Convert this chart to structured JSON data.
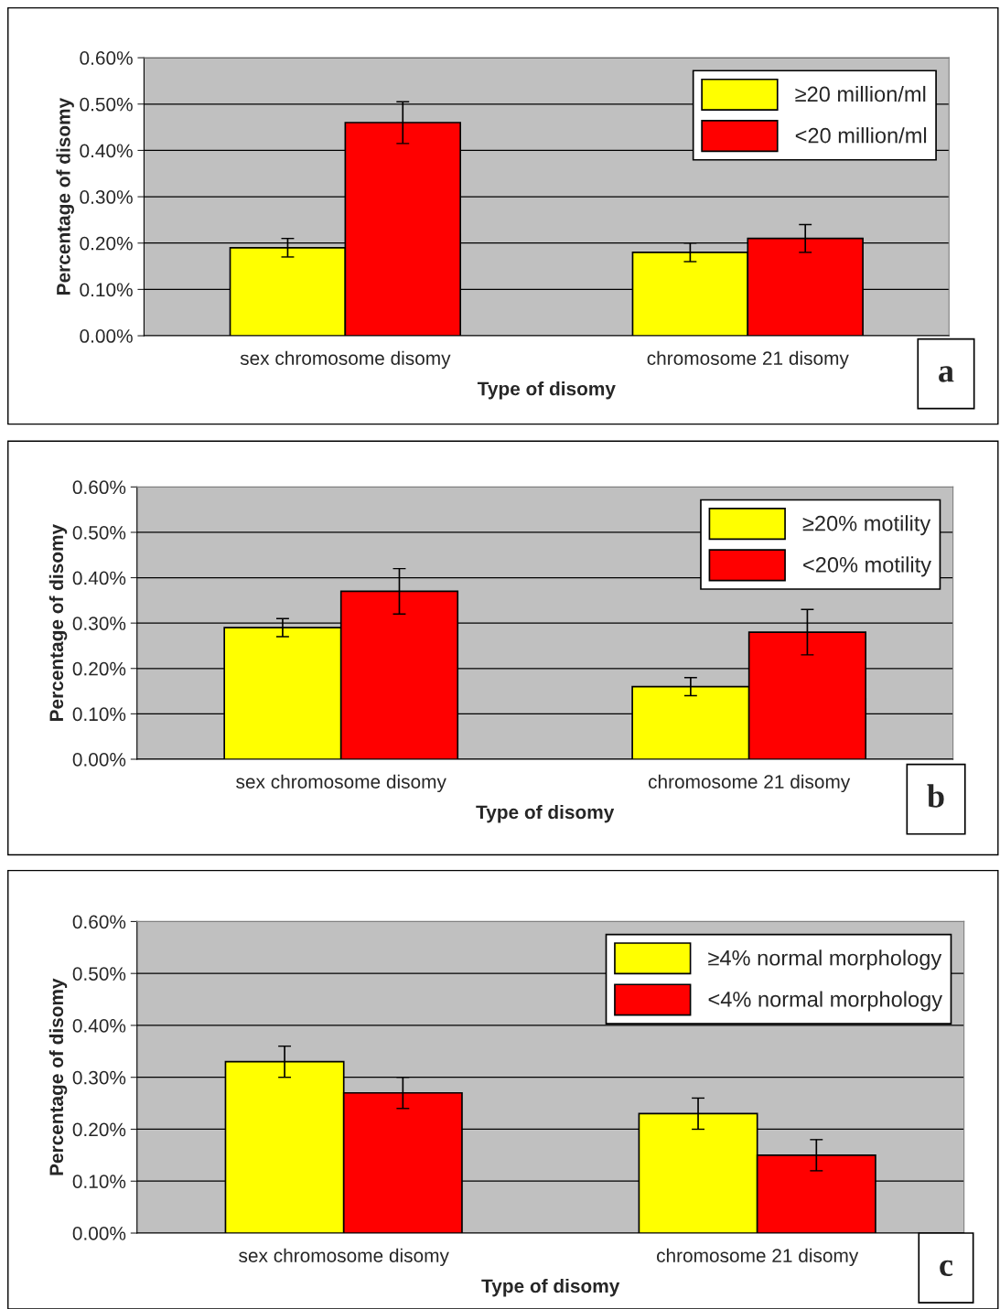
{
  "chart_data": [
    {
      "type": "bar",
      "xlabel": "Type of disomy",
      "ylabel": "Percentage of disomy",
      "categories": [
        "sex chromosome disomy",
        "chromosome 21 disomy"
      ],
      "series": [
        {
          "name": "≥20 million/ml",
          "color": "#ffff00",
          "values": [
            0.19,
            0.18
          ],
          "errors": [
            0.02,
            0.02
          ]
        },
        {
          "name": "<20 million/ml",
          "color": "#ff0000",
          "values": [
            0.46,
            0.21
          ],
          "errors": [
            0.045,
            0.03
          ]
        }
      ],
      "ylim": [
        0,
        0.6
      ],
      "yticks": [
        {
          "value": 0,
          "label": "0.00%"
        },
        {
          "value": 0.1,
          "label": "0.10%"
        },
        {
          "value": 0.2,
          "label": "0.20%"
        },
        {
          "value": 0.3,
          "label": "0.30%"
        },
        {
          "value": 0.4,
          "label": "0.40%"
        },
        {
          "value": 0.5,
          "label": "0.50%"
        },
        {
          "value": 0.6,
          "label": "0.60%"
        }
      ],
      "grid": "y",
      "legend": "top right",
      "annotations": [
        "a"
      ]
    },
    {
      "type": "bar",
      "xlabel": "Type of disomy",
      "ylabel": "Percentage of disomy",
      "categories": [
        "sex chromosome disomy",
        "chromosome 21 disomy"
      ],
      "series": [
        {
          "name": "≥20% motility",
          "color": "#ffff00",
          "values": [
            0.29,
            0.16
          ],
          "errors": [
            0.02,
            0.02
          ]
        },
        {
          "name": "<20% motility",
          "color": "#ff0000",
          "values": [
            0.37,
            0.28
          ],
          "errors": [
            0.05,
            0.05
          ]
        }
      ],
      "ylim": [
        0,
        0.6
      ],
      "yticks": [
        {
          "value": 0,
          "label": "0.00%"
        },
        {
          "value": 0.1,
          "label": "0.10%"
        },
        {
          "value": 0.2,
          "label": "0.20%"
        },
        {
          "value": 0.3,
          "label": "0.30%"
        },
        {
          "value": 0.4,
          "label": "0.40%"
        },
        {
          "value": 0.5,
          "label": "0.50%"
        },
        {
          "value": 0.6,
          "label": "0.60%"
        }
      ],
      "grid": "y",
      "legend": "top right",
      "annotations": [
        "b"
      ]
    },
    {
      "type": "bar",
      "xlabel": "Type of disomy",
      "ylabel": "Percentage of disomy",
      "categories": [
        "sex chromosome disomy",
        "chromosome 21 disomy"
      ],
      "series": [
        {
          "name": "≥4% normal morphology",
          "color": "#ffff00",
          "values": [
            0.33,
            0.23
          ],
          "errors": [
            0.03,
            0.03
          ]
        },
        {
          "name": "<4% normal morphology",
          "color": "#ff0000",
          "values": [
            0.27,
            0.15
          ],
          "errors": [
            0.03,
            0.03
          ]
        }
      ],
      "ylim": [
        0,
        0.6
      ],
      "yticks": [
        {
          "value": 0,
          "label": "0.00%"
        },
        {
          "value": 0.1,
          "label": "0.10%"
        },
        {
          "value": 0.2,
          "label": "0.20%"
        },
        {
          "value": 0.3,
          "label": "0.30%"
        },
        {
          "value": 0.4,
          "label": "0.40%"
        },
        {
          "value": 0.5,
          "label": "0.50%"
        },
        {
          "value": 0.6,
          "label": "0.60%"
        }
      ],
      "grid": "y",
      "legend": "top right",
      "annotations": [
        "c"
      ]
    }
  ]
}
